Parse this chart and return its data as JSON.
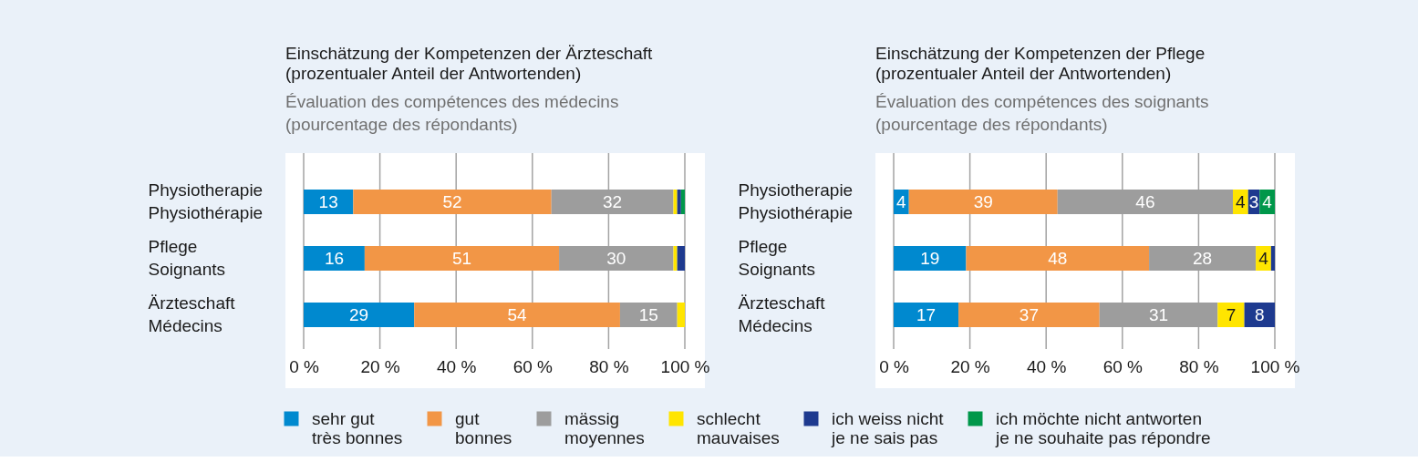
{
  "chart_data": [
    {
      "type": "bar",
      "orientation": "horizontal",
      "stacked": true,
      "title": "Einschätzung der Kompetenzen der Ärzteschaft\n(prozentualer Anteil der Antwortenden)",
      "subtitle": "Évaluation des compétences des médecins\n(pourcentage des répondants)",
      "categories": [
        "Physiotherapie\nPhysiothérapie",
        "Pflege\nSoignants",
        "Ärzteschaft\nMédecins"
      ],
      "series": [
        {
          "name": "sehr gut\ntrès bonnes",
          "color": "#0089cf",
          "values": [
            13,
            16,
            29
          ],
          "value_labels": [
            "13",
            "16",
            "29"
          ]
        },
        {
          "name": "gut\nbonnes",
          "color": "#f29646",
          "values": [
            52,
            51,
            54
          ],
          "value_labels": [
            "52",
            "51",
            "54"
          ]
        },
        {
          "name": "mässig\nmoyennes",
          "color": "#9d9d9d",
          "values": [
            32,
            30,
            15
          ],
          "value_labels": [
            "32",
            "30",
            "15"
          ]
        },
        {
          "name": "schlecht\nmauvaises",
          "color": "#ffe500",
          "values": [
            1,
            1,
            2
          ]
        },
        {
          "name": "ich weiss nicht\nje ne sais pas",
          "color": "#1e3a8f",
          "values": [
            1,
            2,
            null
          ]
        },
        {
          "name": "ich möchte nicht antworten\nje ne souhaite pas répondre",
          "color": "#00974a",
          "values": [
            1,
            null,
            null
          ]
        }
      ],
      "xlim": [
        0,
        100
      ],
      "xticks": [
        {
          "value": 0,
          "label": "0 %"
        },
        {
          "value": 20,
          "label": "20 %"
        },
        {
          "value": 40,
          "label": "40 %"
        },
        {
          "value": 60,
          "label": "60 %"
        },
        {
          "value": 80,
          "label": "80 %"
        },
        {
          "value": 100,
          "label": "100 %"
        }
      ],
      "grid": "x",
      "legend": "bottom"
    },
    {
      "type": "bar",
      "orientation": "horizontal",
      "stacked": true,
      "title": "Einschätzung der Kompetenzen der Pflege\n(prozentualer Anteil der Antwortenden)",
      "subtitle": "Évaluation des compétences des soignants\n(pourcentage des répondants)",
      "categories": [
        "Physiotherapie\nPhysiothérapie",
        "Pflege\nSoignants",
        "Ärzteschaft\nMédecins"
      ],
      "series": [
        {
          "name": "sehr gut\ntrès bonnes",
          "color": "#0089cf",
          "values": [
            4,
            19,
            17
          ],
          "value_labels": [
            "4",
            "19",
            "17"
          ]
        },
        {
          "name": "gut\nbonnes",
          "color": "#f29646",
          "values": [
            39,
            48,
            37
          ],
          "value_labels": [
            "39",
            "48",
            "37"
          ]
        },
        {
          "name": "mässig\nmoyennes",
          "color": "#9d9d9d",
          "values": [
            46,
            28,
            31
          ],
          "value_labels": [
            "46",
            "28",
            "31"
          ]
        },
        {
          "name": "schlecht\nmauvaises",
          "color": "#ffe500",
          "values": [
            4,
            4,
            7
          ],
          "value_labels": [
            "4",
            "4",
            "7"
          ]
        },
        {
          "name": "ich weiss nicht\nje ne sais pas",
          "color": "#1e3a8f",
          "values": [
            3,
            1,
            8
          ],
          "value_labels": [
            "3",
            null,
            "8"
          ]
        },
        {
          "name": "ich möchte nicht antworten\nje ne souhaite pas répondre",
          "color": "#00974a",
          "values": [
            4,
            null,
            null
          ],
          "value_labels": [
            "4",
            null,
            null
          ]
        }
      ],
      "xlim": [
        0,
        100
      ],
      "xticks": [
        {
          "value": 0,
          "label": "0 %"
        },
        {
          "value": 20,
          "label": "20 %"
        },
        {
          "value": 40,
          "label": "40 %"
        },
        {
          "value": 60,
          "label": "60 %"
        },
        {
          "value": 80,
          "label": "80 %"
        },
        {
          "value": 100,
          "label": "100 %"
        }
      ],
      "grid": "x",
      "legend": "bottom"
    }
  ]
}
